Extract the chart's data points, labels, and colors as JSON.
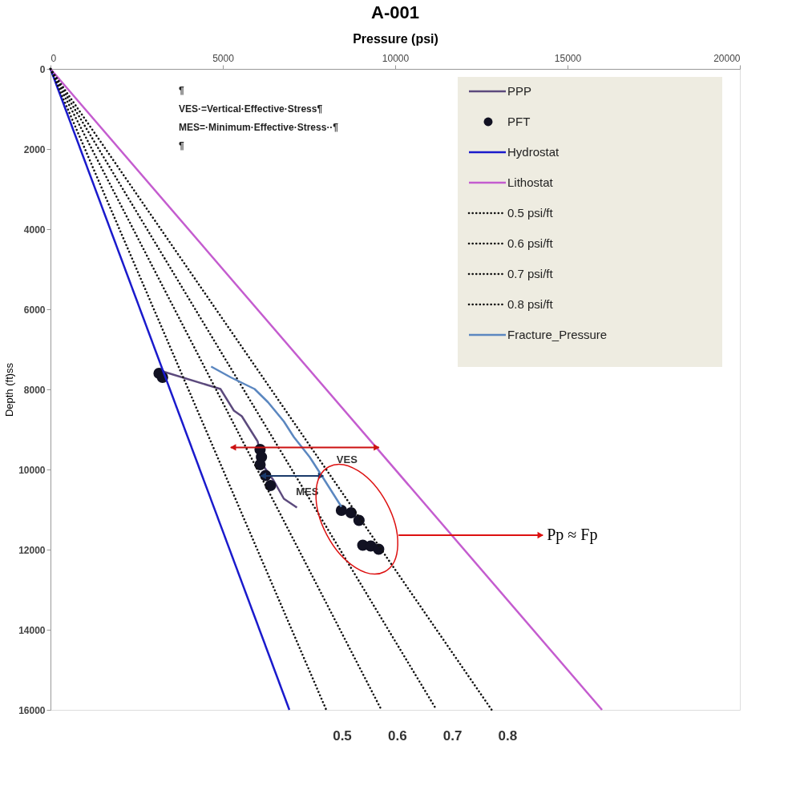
{
  "chart_data": {
    "type": "line",
    "title": "A-001",
    "xlabel": "Pressure (psi)",
    "ylabel": "Depth (ft)ss",
    "xlim": [
      0,
      20000
    ],
    "xticks": [
      0,
      5000,
      10000,
      15000,
      20000
    ],
    "ylim": [
      16000,
      0
    ],
    "yticks": [
      0,
      2000,
      4000,
      6000,
      8000,
      10000,
      12000,
      14000,
      16000
    ],
    "legend": "top right",
    "series": [
      {
        "name": "PPP",
        "color": "#5c4a7d",
        "line_style": "solid",
        "x": [
          3250,
          4700,
          4930,
          5320,
          5550,
          6010,
          6150,
          6470,
          6770,
          7150
        ],
        "values": [
          7550,
          7930,
          7990,
          8530,
          8670,
          9300,
          9880,
          10270,
          10730,
          10950
        ]
      },
      {
        "name": "PFT",
        "type": "scatter",
        "marker": "circle",
        "color": "#111122",
        "x": [
          3150,
          3250,
          6080,
          6120,
          6080,
          6240,
          6380,
          8440,
          8720,
          8950,
          9060,
          9290,
          9520
        ],
        "values": [
          7600,
          7700,
          9500,
          9690,
          9880,
          10150,
          10400,
          11020,
          11080,
          11270,
          11890,
          11910,
          11990
        ]
      },
      {
        "name": "Hydrostat",
        "color": "#1a1acc",
        "line_style": "solid",
        "x": [
          0,
          6930
        ],
        "values": [
          0,
          16000
        ]
      },
      {
        "name": "Lithostat",
        "color": "#c45ccf",
        "line_style": "solid",
        "x": [
          0,
          16000
        ],
        "values": [
          0,
          16000
        ]
      },
      {
        "name": "0.5 psi/ft",
        "color": "#111111",
        "line_style": "dotted",
        "x": [
          0,
          8000
        ],
        "values": [
          0,
          16000
        ]
      },
      {
        "name": "0.6 psi/ft",
        "color": "#111111",
        "line_style": "dotted",
        "x": [
          0,
          9600
        ],
        "values": [
          0,
          16000
        ]
      },
      {
        "name": "0.7 psi/ft",
        "color": "#111111",
        "line_style": "dotted",
        "x": [
          0,
          11200
        ],
        "values": [
          0,
          16000
        ]
      },
      {
        "name": "0.8 psi/ft",
        "color": "#111111",
        "line_style": "dotted",
        "x": [
          0,
          12800
        ],
        "values": [
          0,
          16000
        ]
      },
      {
        "name": "Fracture_Pressure",
        "color": "#5b87c0",
        "line_style": "solid",
        "x": [
          4660,
          5230,
          5920,
          6310,
          6770,
          7060,
          7520,
          7910,
          8440
        ],
        "values": [
          7430,
          7700,
          7990,
          8320,
          8800,
          9190,
          9690,
          10210,
          10930
        ]
      }
    ],
    "annotations": [
      "¶",
      "VES·=Vertical·Effective·Stress¶",
      "MES=·Minimum·Effective·Stress··¶",
      "¶",
      "VES",
      {
        "text": "MES",
        "x": 7450,
        "y": 10560
      },
      "Pp ≈ Fp",
      {
        "text": "0.5",
        "x": 8000,
        "y": 16000
      },
      {
        "text": "0.6",
        "x": 9600,
        "y": 16000
      },
      {
        "text": "0.7",
        "x": 11200,
        "y": 16000
      },
      {
        "text": "0.8",
        "x": 12800,
        "y": 16000
      }
    ]
  }
}
